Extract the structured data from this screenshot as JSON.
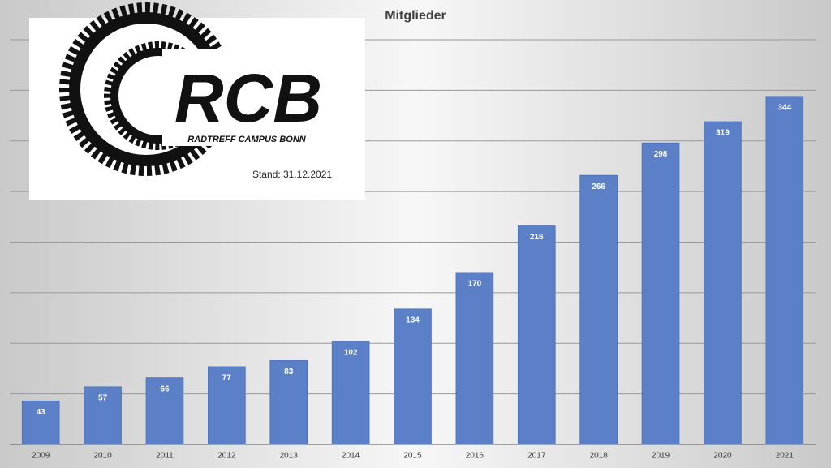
{
  "chart_data": {
    "type": "bar",
    "title": "Mitglieder",
    "categories": [
      "2009",
      "2010",
      "2011",
      "2012",
      "2013",
      "2014",
      "2015",
      "2016",
      "2017",
      "2018",
      "2019",
      "2020",
      "2021"
    ],
    "values": [
      43,
      57,
      66,
      77,
      83,
      102,
      134,
      170,
      216,
      266,
      298,
      319,
      344
    ],
    "color": "#5b80c8",
    "ylim": [
      0,
      400
    ],
    "yticks": [
      0,
      50,
      100,
      150,
      200,
      250,
      300,
      350,
      400
    ],
    "grid": true,
    "logo": {
      "text": "RCB",
      "subtext": "RADTREFF CAMPUS BONN"
    },
    "annotation": "Stand: 31.12.2021"
  }
}
